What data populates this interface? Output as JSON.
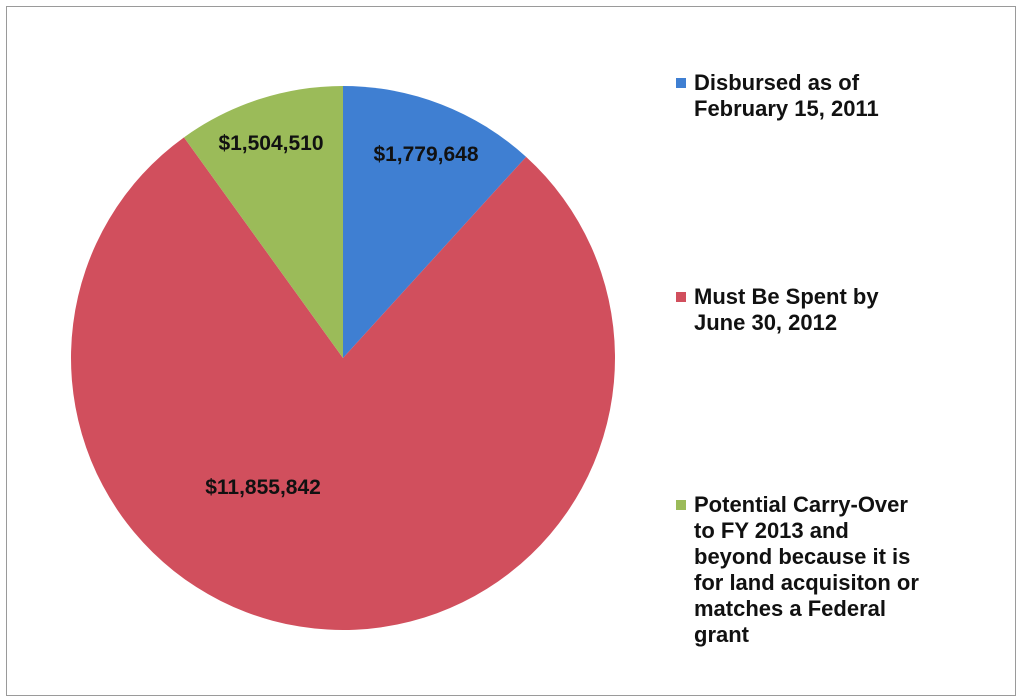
{
  "chart_data": {
    "type": "pie",
    "title": "",
    "slices": [
      {
        "label": "Disbursed as of February 15, 2011",
        "value": 1779648,
        "value_label": "$1,779,648",
        "color": "#3f7fd2"
      },
      {
        "label": "Must Be Spent by June 30, 2012",
        "value": 11855842,
        "value_label": "$11,855,842",
        "color": "#d14f5d"
      },
      {
        "label": "Potential Carry-Over to FY 2013 and beyond because it is for land acquisiton or matches a Federal grant",
        "value": 1504510,
        "value_label": "$1,504,510",
        "color": "#9bbb59"
      }
    ],
    "legend": {
      "position": "right",
      "items": [
        {
          "lines": [
            "Disbursed as of",
            "February 15, 2011"
          ],
          "color": "#3f7fd2"
        },
        {
          "lines": [
            "Must Be Spent by",
            "June 30, 2012"
          ],
          "color": "#d14f5d"
        },
        {
          "lines": [
            "Potential Carry-Over",
            "to FY 2013 and",
            "beyond because it is",
            "for land acquisiton or",
            "matches a Federal",
            "grant"
          ],
          "color": "#9bbb59"
        }
      ]
    }
  }
}
